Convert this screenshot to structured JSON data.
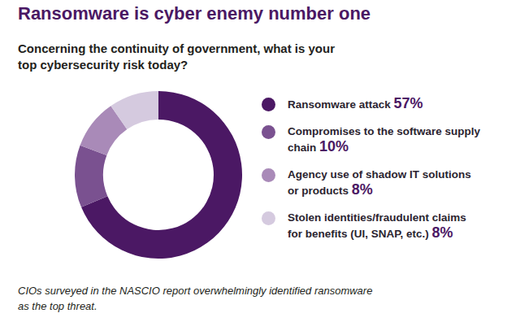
{
  "chart_data": {
    "type": "donut",
    "title": "Ransomware is cyber enemy number one",
    "subtitle": "Concerning the continuity of government, what is your top cybersecurity risk today?",
    "categories": [
      "Ransomware attack",
      "Compromises to the software supply chain",
      "Agency use of shadow IT solutions or products",
      "Stolen identities/fraudulent claims for benefits (UI, SNAP, etc.)"
    ],
    "values": [
      57,
      10,
      8,
      8
    ],
    "value_labels": [
      "57%",
      "10%",
      "8%",
      "8%"
    ],
    "colors": [
      "#4b1864",
      "#7a5190",
      "#a98ab8",
      "#d5cadf"
    ],
    "legend": "right",
    "caption": "CIOs surveyed in the NASCIO report overwhelmingly identified ransomware as the top threat."
  }
}
